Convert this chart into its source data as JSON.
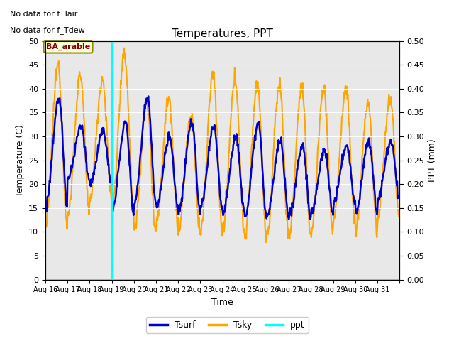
{
  "title": "Temperatures, PPT",
  "xlabel": "Time",
  "ylabel_left": "Temperature (C)",
  "ylabel_right": "PPT (mm)",
  "top_left_text1": "No data for f_Tair",
  "top_left_text2": "No data for f_Tdew",
  "ba_label": "BA_arable",
  "ylim_left": [
    0,
    50
  ],
  "ylim_right": [
    0.0,
    0.5
  ],
  "yticks_left": [
    0,
    5,
    10,
    15,
    20,
    25,
    30,
    35,
    40,
    45,
    50
  ],
  "yticks_right": [
    0.0,
    0.05,
    0.1,
    0.15,
    0.2,
    0.25,
    0.3,
    0.35,
    0.4,
    0.45,
    0.5
  ],
  "xtick_labels": [
    "Aug 16",
    "Aug 17",
    "Aug 18",
    "Aug 19",
    "Aug 20",
    "Aug 21",
    "Aug 22",
    "Aug 23",
    "Aug 24",
    "Aug 25",
    "Aug 26",
    "Aug 27",
    "Aug 28",
    "Aug 29",
    "Aug 30",
    "Aug 31"
  ],
  "n_days": 16,
  "vertical_line_day": 3,
  "tsurf_color": "#0000cc",
  "tsky_color": "#ffa500",
  "ppt_color": "#00ffff",
  "bg_color": "#e8e8e8",
  "legend_labels": [
    "Tsurf",
    "Tsky",
    "ppt"
  ],
  "tsurf_lw": 1.8,
  "tsky_lw": 1.5,
  "ppt_lw": 2.0,
  "figsize": [
    6.4,
    4.8
  ],
  "dpi": 100
}
